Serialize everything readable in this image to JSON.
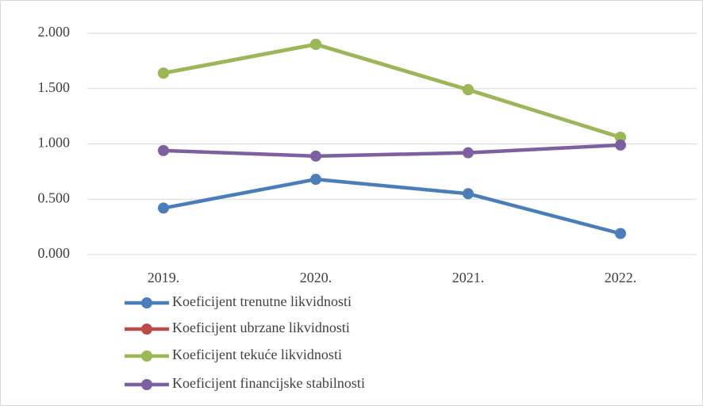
{
  "chart_data": {
    "type": "line",
    "categories": [
      "2019.",
      "2020.",
      "2021.",
      "2022."
    ],
    "series": [
      {
        "name": "Koeficijent trenutne likvidnosti",
        "color": "#4a7ebb",
        "values": [
          0.42,
          0.68,
          0.55,
          0.19
        ]
      },
      {
        "name": "Koeficijent ubrzane likvidnosti",
        "color": "#be4b48",
        "values": [
          1.64,
          1.9,
          1.49,
          1.06
        ]
      },
      {
        "name": "Koeficijent tekuće likvidnosti",
        "color": "#98b954",
        "values": [
          1.64,
          1.9,
          1.49,
          1.06
        ]
      },
      {
        "name": "Koeficijent financijske stabilnosti",
        "color": "#7d60a0",
        "values": [
          0.94,
          0.89,
          0.92,
          0.99
        ]
      }
    ],
    "ylim": [
      0,
      2
    ],
    "yticks": [
      {
        "value": 0,
        "label": "0.000"
      },
      {
        "value": 0.5,
        "label": "0.500"
      },
      {
        "value": 1,
        "label": "1.000"
      },
      {
        "value": 1.5,
        "label": "1.500"
      },
      {
        "value": 2,
        "label": "2.000"
      }
    ],
    "grid": true,
    "legend": "bottom"
  }
}
